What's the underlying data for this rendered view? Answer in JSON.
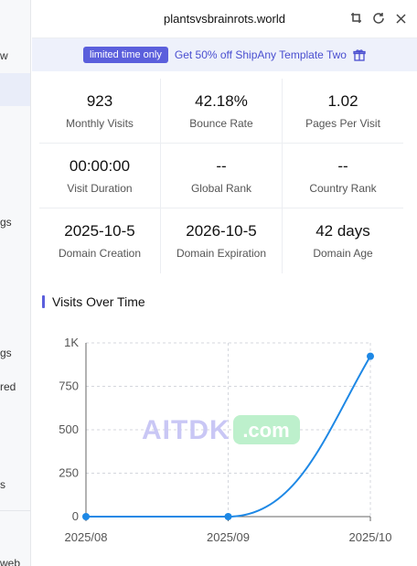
{
  "sidebar": {
    "items": [
      {
        "label": "w",
        "y": 62
      },
      {
        "label": "gs",
        "y": 244
      },
      {
        "label": "gs",
        "y": 387
      },
      {
        "label": "red",
        "y": 424
      },
      {
        "label": "s",
        "y": 531
      },
      {
        "label": "web",
        "y": 615
      }
    ]
  },
  "header": {
    "title": "plantsvsbrainrots.world"
  },
  "promo": {
    "badge": "limited time only",
    "text": "Get 50% off ShipAny Template Two"
  },
  "stats": {
    "rows": [
      [
        {
          "value": "923",
          "label": "Monthly Visits"
        },
        {
          "value": "42.18%",
          "label": "Bounce Rate"
        },
        {
          "value": "1.02",
          "label": "Pages Per Visit"
        }
      ],
      [
        {
          "value": "00:00:00",
          "label": "Visit Duration"
        },
        {
          "value": "--",
          "label": "Global Rank"
        },
        {
          "value": "--",
          "label": "Country Rank"
        }
      ],
      [
        {
          "value": "2025-10-5",
          "label": "Domain Creation"
        },
        {
          "value": "2026-10-5",
          "label": "Domain Expiration"
        },
        {
          "value": "42 days",
          "label": "Domain Age"
        }
      ]
    ]
  },
  "section": {
    "title": "Visits Over Time"
  },
  "watermark": {
    "left": "AITDK",
    "right": ".com"
  },
  "colors": {
    "accent": "#5b5fdc",
    "line": "#1e88e5"
  },
  "chart_data": {
    "type": "line",
    "x": [
      "2025/08",
      "2025/09",
      "2025/10"
    ],
    "series": [
      {
        "values": [
          0,
          0,
          923
        ]
      }
    ],
    "ylim": [
      0,
      1000
    ],
    "y_ticks": [
      "0",
      "250",
      "500",
      "750",
      "1K"
    ],
    "grid": true
  }
}
